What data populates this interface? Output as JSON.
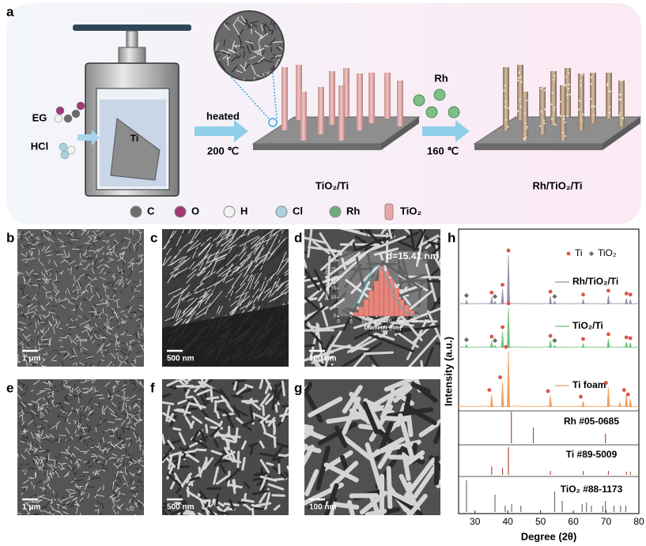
{
  "panel_a": {
    "label": "a",
    "inputs": [
      "EG",
      "HCl"
    ],
    "reactor_label": "Ti",
    "step1": "heated",
    "temp1": "200 ℃",
    "product1": "TiO₂/Ti",
    "step2": "Rh",
    "temp2": "160 ℃",
    "product2": "Rh/TiO₂/Ti",
    "legend": [
      {
        "name": "C",
        "color": "#6b6b6b"
      },
      {
        "name": "O",
        "color": "#a23a78"
      },
      {
        "name": "H",
        "color": "#f2f2f2"
      },
      {
        "name": "Cl",
        "color": "#a9d3df"
      },
      {
        "name": "Rh",
        "color": "#6fae7c"
      },
      {
        "name": "TiO₂",
        "color": "#e3a8a8"
      }
    ]
  },
  "sem_panels": [
    {
      "label": "b",
      "scale": "1 μm"
    },
    {
      "label": "c",
      "scale": "500 nm"
    },
    {
      "label": "d",
      "scale": "100 nm"
    },
    {
      "label": "e",
      "scale": "1 μm"
    },
    {
      "label": "f",
      "scale": "500 nm"
    },
    {
      "label": "g",
      "scale": "100 nm"
    }
  ],
  "chart_data": [
    {
      "type": "histogram",
      "title": "d=15.41 nm",
      "x_label": "Diameter (nm)",
      "y_label": "Percentage (%)",
      "color": "#e8857a",
      "bins": [
        6,
        8,
        10,
        12,
        14,
        16,
        18,
        20,
        22,
        24,
        26,
        28,
        30,
        32
      ],
      "values": [
        2,
        5,
        9,
        14,
        19,
        27,
        24,
        20,
        15,
        9,
        6,
        3,
        1
      ],
      "xlim": [
        0,
        35
      ],
      "ylim": [
        0,
        35
      ],
      "xticks": [
        0,
        5,
        10,
        15,
        20,
        25,
        30,
        35
      ],
      "yticks": [
        0,
        5,
        10,
        15,
        20,
        25,
        30,
        35
      ]
    },
    {
      "type": "xrd",
      "label": "h",
      "x_label": "Degree (2θ)",
      "y_label": "Intensity (a.u.)",
      "xlim": [
        25,
        80
      ],
      "xticks": [
        30,
        40,
        50,
        60,
        70,
        80
      ],
      "legend": [
        {
          "name": "Ti",
          "color": "#e0524a"
        },
        {
          "name": "TiO₂",
          "color": "#6e6e6e"
        }
      ],
      "ti_peaks": [
        35.1,
        38.4,
        40.2,
        53.0,
        63.0,
        70.7,
        76.2,
        77.4
      ],
      "tio2_peaks": [
        27.4,
        36.1,
        54.3
      ],
      "series": [
        {
          "name": "Rh/TiO₂/Ti",
          "color": "#9a8fa8",
          "style": "trace",
          "marked": true,
          "x": [
            27.4,
            35.1,
            36.1,
            38.4,
            40.2,
            53.0,
            54.3,
            63.0,
            70.7,
            76.2,
            77.4
          ],
          "values": [
            8,
            14,
            6,
            30,
            100,
            16,
            6,
            10,
            18,
            12,
            10
          ]
        },
        {
          "name": "TiO₂/Ti",
          "color": "#6fc17a",
          "style": "trace",
          "marked": true,
          "x": [
            27.4,
            35.1,
            36.1,
            38.4,
            40.2,
            53.0,
            54.3,
            63.0,
            70.7,
            76.2,
            77.4
          ],
          "values": [
            8,
            16,
            6,
            40,
            100,
            18,
            6,
            10,
            22,
            14,
            12
          ]
        },
        {
          "name": "Ti foam",
          "color": "#f0a060",
          "style": "trace",
          "marked": false,
          "x": [
            35.1,
            38.4,
            40.2,
            53.0,
            63.0,
            70.7,
            74.2,
            76.2,
            77.4
          ],
          "values": [
            22,
            45,
            100,
            20,
            10,
            35,
            8,
            22,
            14
          ]
        },
        {
          "name": "Rh #05-0685",
          "color": "#b04a3a",
          "style": "sticks",
          "x": [
            41.1,
            47.8,
            69.8
          ],
          "values": [
            100,
            50,
            30
          ]
        },
        {
          "name": "Ti #89-5009",
          "color": "#b04a3a",
          "style": "sticks",
          "x": [
            35.1,
            38.4,
            40.2,
            53.0,
            63.0,
            70.7,
            76.2,
            77.4
          ],
          "values": [
            30,
            25,
            100,
            14,
            14,
            14,
            12,
            10
          ]
        },
        {
          "name": "TiO₂ #88-1173",
          "color": "#6e6e6e",
          "style": "sticks",
          "x": [
            27.4,
            36.1,
            39.2,
            41.2,
            44.0,
            54.3,
            56.6,
            62.7,
            64.0,
            65.5,
            69.0,
            69.8,
            72.4,
            74.4,
            76.0
          ],
          "values": [
            100,
            55,
            20,
            25,
            20,
            65,
            35,
            25,
            30,
            20,
            20,
            35,
            20,
            20,
            20
          ]
        }
      ]
    }
  ]
}
